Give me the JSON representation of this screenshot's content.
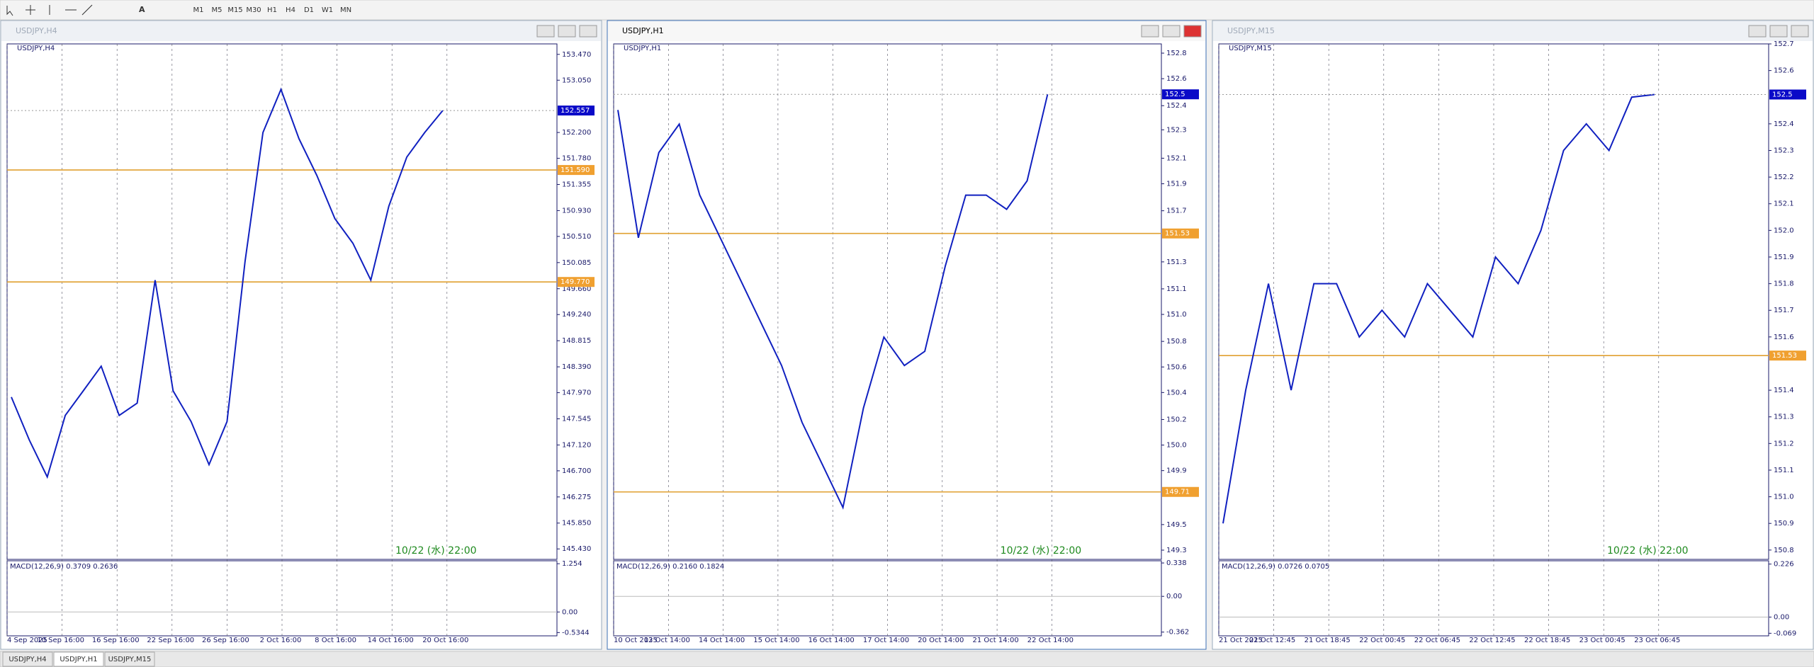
{
  "toolbar": {
    "timeframes": [
      "M1",
      "M5",
      "M15",
      "M30",
      "H1",
      "H4",
      "D1",
      "W1",
      "MN"
    ]
  },
  "windows": [
    {
      "title": "USDJPY,H4",
      "symbol": "USDJPY,H4",
      "ylim": [
        145.26,
        153.64
      ],
      "yticks": [
        {
          "value": 153.47,
          "label": "153.470"
        },
        {
          "value": 153.05,
          "label": "153.050"
        },
        {
          "value": 152.2,
          "label": "152.200"
        },
        {
          "value": 151.78,
          "label": "151.780"
        },
        {
          "value": 151.355,
          "label": "151.355"
        },
        {
          "value": 150.93,
          "label": "150.930"
        },
        {
          "value": 150.51,
          "label": "150.510"
        },
        {
          "value": 150.085,
          "label": "150.085"
        },
        {
          "value": 149.66,
          "label": "149.660"
        },
        {
          "value": 149.24,
          "label": "149.240"
        },
        {
          "value": 148.815,
          "label": "148.815"
        },
        {
          "value": 148.39,
          "label": "148.390"
        },
        {
          "value": 147.97,
          "label": "147.970"
        },
        {
          "value": 147.545,
          "label": "147.545"
        },
        {
          "value": 147.12,
          "label": "147.120"
        },
        {
          "value": 146.7,
          "label": "146.700"
        },
        {
          "value": 146.275,
          "label": "146.275"
        },
        {
          "value": 145.85,
          "label": "145.850"
        },
        {
          "value": 145.43,
          "label": "145.430"
        }
      ],
      "levels": [
        {
          "value": 151.59,
          "label": "151.590"
        },
        {
          "value": 149.77,
          "label": "149.770"
        }
      ],
      "current": {
        "value": 152.557,
        "label": "152.557"
      },
      "closes": [
        147.9,
        147.2,
        146.6,
        147.6,
        148.0,
        148.4,
        147.6,
        147.8,
        149.8,
        148.0,
        147.5,
        146.8,
        147.5,
        150.1,
        152.2,
        152.9,
        152.1,
        151.5,
        150.8,
        150.4,
        149.8,
        151.0,
        151.8,
        152.2,
        152.557
      ],
      "times": [
        "4 Sep 2025",
        "10 Sep 16:00",
        "16 Sep 16:00",
        "22 Sep 16:00",
        "26 Sep 16:00",
        "2 Oct 16:00",
        "8 Oct 16:00",
        "14 Oct 16:00",
        "20 Oct 16:00"
      ],
      "macd_label": "MACD(12,26,9) 0.3709 0.2636",
      "macd_ylim": [
        -0.62,
        1.33
      ],
      "macd_ticks": [
        1.254,
        {
          "value": 0,
          "label": "0.00"
        },
        -0.5344
      ],
      "annotation": "10/22 (水) 22:00"
    },
    {
      "title": "USDJPY,H1",
      "symbol": "USDJPY,H1",
      "ylim": [
        149.235,
        152.865
      ],
      "yticks": [
        {
          "value": 152.8,
          "label": "152.8"
        },
        {
          "value": 152.62,
          "label": "152.6"
        },
        {
          "value": 152.43,
          "label": "152.4"
        },
        {
          "value": 152.26,
          "label": "152.3"
        },
        {
          "value": 152.06,
          "label": "152.1"
        },
        {
          "value": 151.88,
          "label": "151.9"
        },
        {
          "value": 151.69,
          "label": "151.7"
        },
        {
          "value": 151.33,
          "label": "151.3"
        },
        {
          "value": 151.14,
          "label": "151.1"
        },
        {
          "value": 150.96,
          "label": "151.0"
        },
        {
          "value": 150.77,
          "label": "150.8"
        },
        {
          "value": 150.59,
          "label": "150.6"
        },
        {
          "value": 150.41,
          "label": "150.4"
        },
        {
          "value": 150.22,
          "label": "150.2"
        },
        {
          "value": 150.04,
          "label": "150.0"
        },
        {
          "value": 149.86,
          "label": "149.9"
        },
        {
          "value": 149.48,
          "label": "149.5"
        },
        {
          "value": 149.3,
          "label": "149.3"
        }
      ],
      "levels": [
        {
          "value": 151.53,
          "label": "151.53"
        },
        {
          "value": 149.71,
          "label": "149.71"
        }
      ],
      "current": {
        "value": 152.51,
        "label": "152.5"
      },
      "closes": [
        152.4,
        151.5,
        152.1,
        152.3,
        151.8,
        151.5,
        151.2,
        150.9,
        150.6,
        150.2,
        149.9,
        149.6,
        150.3,
        150.8,
        150.6,
        150.7,
        151.3,
        151.8,
        151.8,
        151.7,
        151.9,
        152.51
      ],
      "times": [
        "10 Oct 2025",
        "13 Oct 14:00",
        "14 Oct 14:00",
        "15 Oct 14:00",
        "16 Oct 14:00",
        "17 Oct 14:00",
        "20 Oct 14:00",
        "21 Oct 14:00",
        "22 Oct 14:00"
      ],
      "macd_label": "MACD(12,26,9) 0.2160 0.1824",
      "macd_ylim": [
        -0.4,
        0.36
      ],
      "macd_ticks": [
        0.338,
        {
          "value": 0,
          "label": "0.00"
        },
        -0.362
      ],
      "annotation": "10/22 (水) 22:00"
    },
    {
      "title": "USDJPY,M15",
      "symbol": "USDJPY,M15",
      "ylim": [
        150.765,
        152.7
      ],
      "yticks": [
        {
          "value": 152.7,
          "label": "152.7"
        },
        {
          "value": 152.6,
          "label": "152.6"
        },
        {
          "value": 152.4,
          "label": "152.4"
        },
        {
          "value": 152.3,
          "label": "152.3"
        },
        {
          "value": 152.2,
          "label": "152.2"
        },
        {
          "value": 152.1,
          "label": "152.1"
        },
        {
          "value": 152,
          "label": "152.0"
        },
        {
          "value": 151.9,
          "label": "151.9"
        },
        {
          "value": 151.8,
          "label": "151.8"
        },
        {
          "value": 151.7,
          "label": "151.7"
        },
        {
          "value": 151.6,
          "label": "151.6"
        },
        {
          "value": 151.4,
          "label": "151.4"
        },
        {
          "value": 151.3,
          "label": "151.3"
        },
        {
          "value": 151.2,
          "label": "151.2"
        },
        {
          "value": 151.1,
          "label": "151.1"
        },
        {
          "value": 151,
          "label": "151.0"
        },
        {
          "value": 150.9,
          "label": "150.9"
        },
        {
          "value": 150.8,
          "label": "150.8"
        }
      ],
      "levels": [
        {
          "value": 151.53,
          "label": "151.53"
        }
      ],
      "current": {
        "value": 152.51,
        "label": "152.5"
      },
      "closes": [
        150.9,
        151.4,
        151.8,
        151.4,
        151.8,
        151.8,
        151.6,
        151.7,
        151.6,
        151.8,
        151.7,
        151.6,
        151.9,
        151.8,
        152.0,
        152.3,
        152.4,
        152.3,
        152.5,
        152.51
      ],
      "times": [
        "21 Oct 2025",
        "21 Oct 12:45",
        "21 Oct 18:45",
        "22 Oct 00:45",
        "22 Oct 06:45",
        "22 Oct 12:45",
        "22 Oct 18:45",
        "23 Oct 00:45",
        "23 Oct 06:45"
      ],
      "macd_label": "MACD(12,26,9) 0.0726 0.0705",
      "macd_ylim": [
        -0.08,
        0.24
      ],
      "macd_ticks": [
        0.226,
        {
          "value": 0,
          "label": "0.00"
        },
        -0.069
      ],
      "annotation": "10/22 (水) 22:00"
    }
  ],
  "tabs": [
    "USDJPY,H4",
    "USDJPY,H1",
    "USDJPY,M15"
  ]
}
